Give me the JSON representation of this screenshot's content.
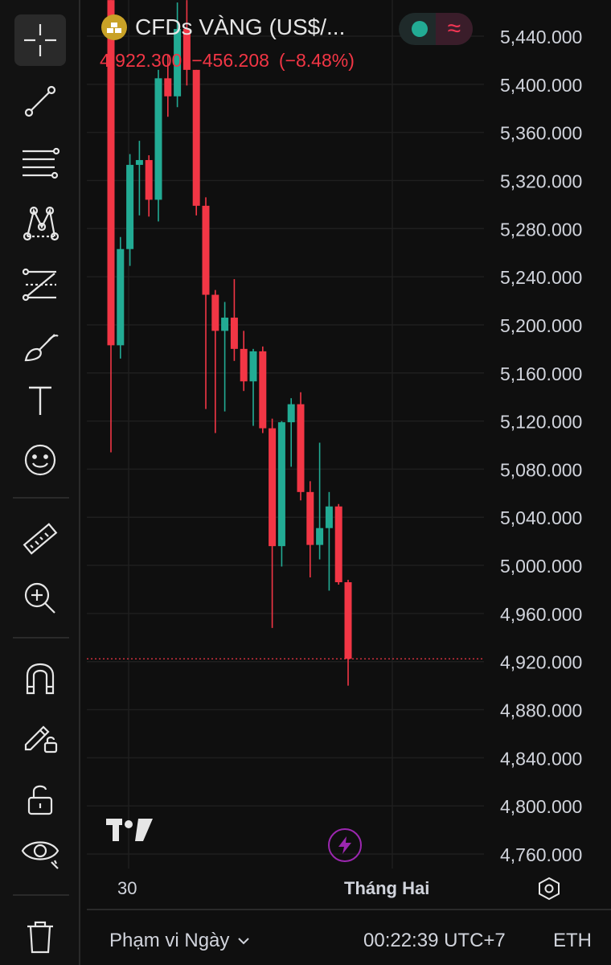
{
  "header": {
    "symbol_title": "CFDs VÀNG (US$/...",
    "last_price": "4,922.300",
    "change": "−456.208",
    "change_pct": "(−8.48%)",
    "symbol_icon": "gold-bars-icon"
  },
  "toolbar": [
    {
      "name": "crosshair-icon"
    },
    {
      "name": "trend-line-icon"
    },
    {
      "name": "fib-retracement-icon"
    },
    {
      "name": "pattern-icon"
    },
    {
      "name": "forecast-icon"
    },
    {
      "name": "brush-icon"
    },
    {
      "name": "text-icon"
    },
    {
      "name": "emoji-icon"
    },
    {
      "name": "ruler-icon"
    },
    {
      "name": "zoom-in-icon"
    },
    {
      "name": "magnet-icon"
    },
    {
      "name": "lock-drawing-icon"
    },
    {
      "name": "unlock-icon"
    },
    {
      "name": "eye-icon"
    },
    {
      "name": "trash-icon"
    }
  ],
  "x_axis": {
    "label_30": "30",
    "label_month": "Tháng Hai"
  },
  "bottom_bar": {
    "range_label": "Phạm vi Ngày",
    "clock": "00:22:39 UTC+7",
    "session": "ETH"
  },
  "colors": {
    "up": "#22ab94",
    "down": "#f23645",
    "accent_purple": "#9c27b0",
    "gold": "#c9a227"
  },
  "chart_data": {
    "type": "candlestick",
    "y_ticks": [
      "5,440.000",
      "5,400.000",
      "5,360.000",
      "5,320.000",
      "5,280.000",
      "5,240.000",
      "5,200.000",
      "5,160.000",
      "5,120.000",
      "5,080.000",
      "5,040.000",
      "5,000.000",
      "4,960.000",
      "4,920.000",
      "4,880.000",
      "4,840.000",
      "4,800.000",
      "4,760.000"
    ],
    "ylim": [
      4740,
      5470
    ],
    "last_price_value": 4922.3,
    "candles": [
      {
        "o": 5470,
        "h": 5470,
        "l": 5094,
        "c": 5183
      },
      {
        "o": 5183,
        "h": 5273,
        "l": 5172,
        "c": 5263
      },
      {
        "o": 5263,
        "h": 5342,
        "l": 5249,
        "c": 5333
      },
      {
        "o": 5333,
        "h": 5353,
        "l": 5291,
        "c": 5337
      },
      {
        "o": 5337,
        "h": 5341,
        "l": 5290,
        "c": 5304
      },
      {
        "o": 5304,
        "h": 5412,
        "l": 5286,
        "c": 5405
      },
      {
        "o": 5405,
        "h": 5424,
        "l": 5373,
        "c": 5390
      },
      {
        "o": 5390,
        "h": 5468,
        "l": 5381,
        "c": 5446
      },
      {
        "o": 5446,
        "h": 5470,
        "l": 5399,
        "c": 5412
      },
      {
        "o": 5412,
        "h": 5412,
        "l": 5291,
        "c": 5299
      },
      {
        "o": 5299,
        "h": 5306,
        "l": 5130,
        "c": 5225
      },
      {
        "o": 5225,
        "h": 5229,
        "l": 5110,
        "c": 5195
      },
      {
        "o": 5195,
        "h": 5219,
        "l": 5128,
        "c": 5206
      },
      {
        "o": 5206,
        "h": 5238,
        "l": 5170,
        "c": 5180
      },
      {
        "o": 5180,
        "h": 5195,
        "l": 5145,
        "c": 5153
      },
      {
        "o": 5153,
        "h": 5180,
        "l": 5116,
        "c": 5178
      },
      {
        "o": 5178,
        "h": 5182,
        "l": 5110,
        "c": 5114
      },
      {
        "o": 5114,
        "h": 5122,
        "l": 4948,
        "c": 5016
      },
      {
        "o": 5016,
        "h": 5120,
        "l": 4999,
        "c": 5119
      },
      {
        "o": 5119,
        "h": 5139,
        "l": 5082,
        "c": 5134
      },
      {
        "o": 5134,
        "h": 5144,
        "l": 5054,
        "c": 5061
      },
      {
        "o": 5061,
        "h": 5070,
        "l": 4990,
        "c": 5017
      },
      {
        "o": 5017,
        "h": 5102,
        "l": 5005,
        "c": 5031
      },
      {
        "o": 5031,
        "h": 5061,
        "l": 4979,
        "c": 5049
      },
      {
        "o": 5049,
        "h": 5051,
        "l": 4984,
        "c": 4986
      },
      {
        "o": 4986,
        "h": 4988,
        "l": 4900,
        "c": 4922.3
      }
    ]
  }
}
